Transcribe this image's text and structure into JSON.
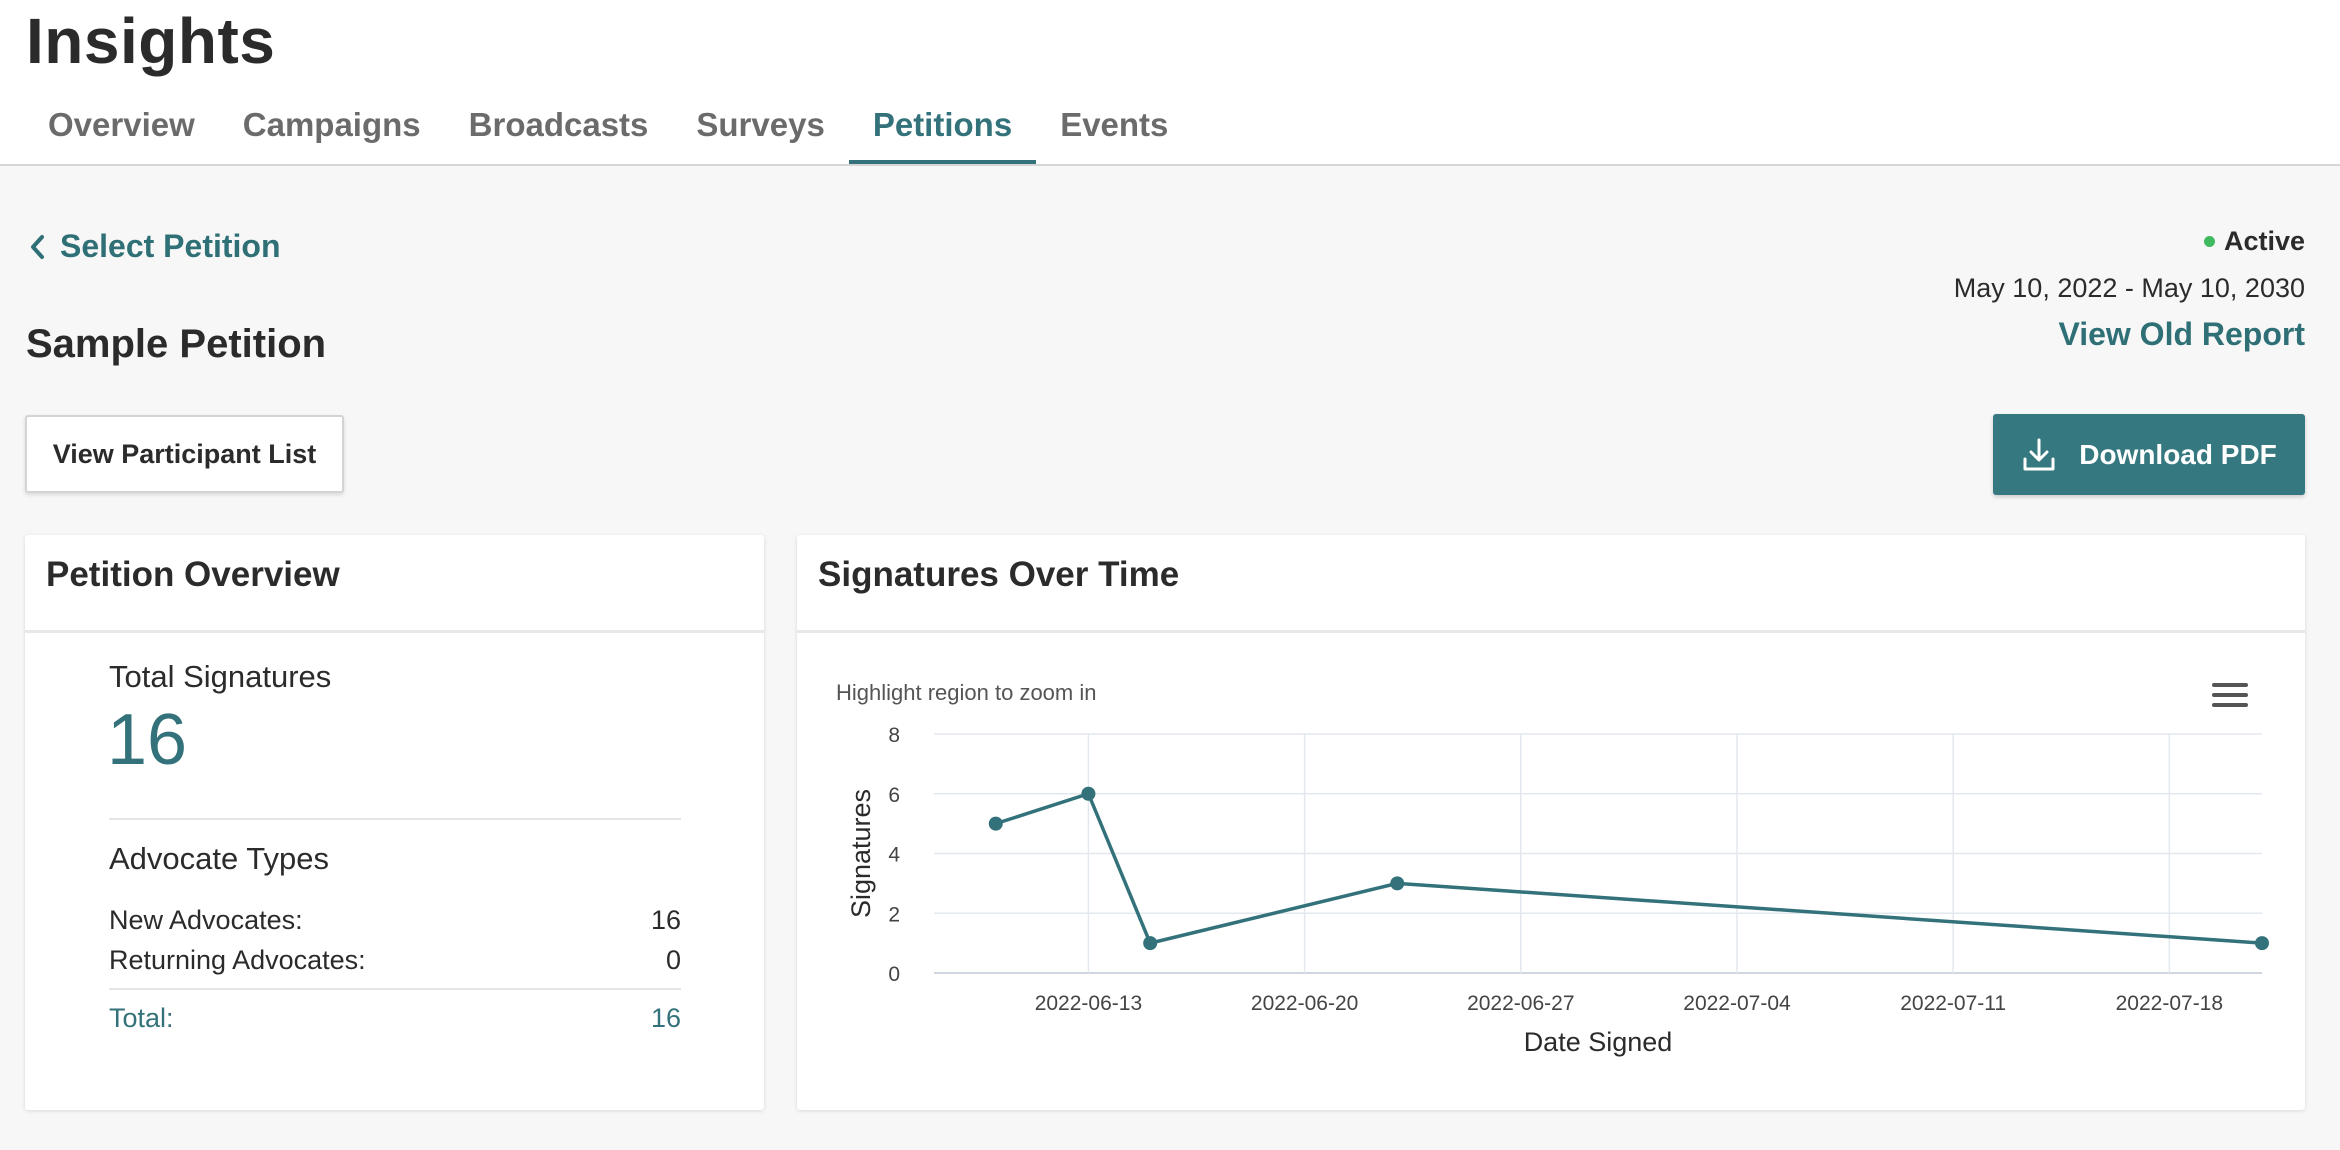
{
  "header": {
    "title": "Insights",
    "tabs": [
      {
        "label": "Overview",
        "active": false
      },
      {
        "label": "Campaigns",
        "active": false
      },
      {
        "label": "Broadcasts",
        "active": false
      },
      {
        "label": "Surveys",
        "active": false
      },
      {
        "label": "Petitions",
        "active": true
      },
      {
        "label": "Events",
        "active": false
      }
    ]
  },
  "page": {
    "back_label": "Select Petition",
    "title": "Sample Petition",
    "status": "Active",
    "status_color": "#3fba5f",
    "date_range": "May 10, 2022 - May 10, 2030",
    "old_report_label": "View Old Report",
    "participant_button_label": "View Participant List",
    "download_button_label": "Download PDF",
    "accent_color": "#35787f"
  },
  "overview": {
    "title": "Petition Overview",
    "total_label": "Total Signatures",
    "total_value": "16",
    "types_title": "Advocate Types",
    "rows": [
      {
        "label": "New Advocates:",
        "value": "16"
      },
      {
        "label": "Returning Advocates:",
        "value": "0"
      }
    ],
    "total_row": {
      "label": "Total:",
      "value": "16"
    }
  },
  "chart_card": {
    "title": "Signatures Over Time",
    "zoom_hint": "Highlight region to zoom in",
    "menu_icon": "hamburger-menu-icon"
  },
  "chart_data": {
    "type": "line",
    "title": "",
    "xlabel": "Date Signed",
    "ylabel": "Signatures",
    "ylim": [
      0,
      8
    ],
    "yticks": [
      0,
      2,
      4,
      6,
      8
    ],
    "xlim": [
      "2022-06-08",
      "2022-07-21"
    ],
    "xticks": [
      "2022-06-13",
      "2022-06-20",
      "2022-06-27",
      "2022-07-04",
      "2022-07-11",
      "2022-07-18"
    ],
    "grid": true,
    "series": [
      {
        "color": "#33727a",
        "points": [
          {
            "x": "2022-06-10",
            "y": 5
          },
          {
            "x": "2022-06-13",
            "y": 6
          },
          {
            "x": "2022-06-15",
            "y": 1
          },
          {
            "x": "2022-06-23",
            "y": 3
          },
          {
            "x": "2022-07-21",
            "y": 1
          }
        ]
      }
    ]
  }
}
